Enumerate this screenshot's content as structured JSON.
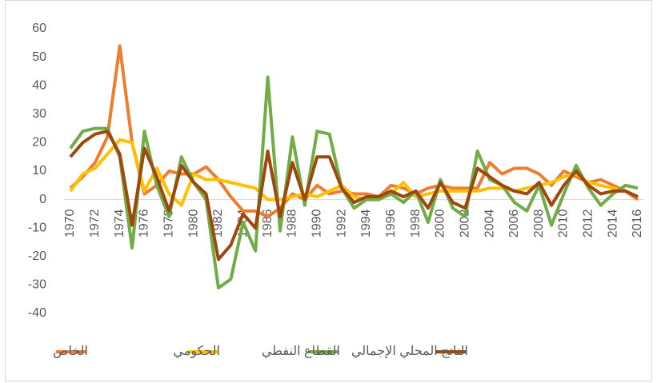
{
  "chart_data": {
    "type": "line",
    "x": [
      1970,
      1971,
      1972,
      1973,
      1974,
      1975,
      1976,
      1977,
      1978,
      1979,
      1980,
      1981,
      1982,
      1983,
      1984,
      1985,
      1986,
      1987,
      1988,
      1989,
      1990,
      1991,
      1992,
      1993,
      1994,
      1995,
      1996,
      1997,
      1998,
      1999,
      2000,
      2001,
      2002,
      2003,
      2004,
      2005,
      2006,
      2007,
      2008,
      2009,
      2010,
      2011,
      2012,
      2013,
      2014,
      2015,
      2016
    ],
    "xlim": [
      1970,
      2016
    ],
    "xticks": [
      1970,
      1972,
      1974,
      1976,
      1978,
      1980,
      1982,
      1984,
      1986,
      1988,
      1990,
      1992,
      1994,
      1996,
      1998,
      2000,
      2002,
      2004,
      2006,
      2008,
      2010,
      2012,
      2014,
      2016
    ],
    "ylim": [
      -40,
      60
    ],
    "yticks": [
      -40,
      -30,
      -20,
      -10,
      0,
      10,
      20,
      30,
      40,
      50,
      60
    ],
    "grid": false,
    "legend": "bottom",
    "series": [
      {
        "name": "الخاص",
        "color": "#ED7D31",
        "values": [
          4,
          8,
          13,
          22,
          54,
          20,
          2,
          5,
          10,
          9,
          9,
          11.5,
          7,
          1,
          -4,
          -4,
          -6,
          -3,
          2,
          0,
          5,
          2,
          3,
          2,
          2,
          1,
          5,
          4,
          2,
          4,
          5,
          4,
          4,
          4,
          13,
          9,
          11,
          11,
          9,
          5,
          10,
          8,
          6,
          7,
          5,
          3,
          0
        ]
      },
      {
        "name": "الحكومي",
        "color": "#FFC000",
        "values": [
          3,
          9,
          11,
          16,
          21,
          20,
          3,
          11,
          2,
          -2,
          9,
          7,
          7,
          6,
          5,
          4,
          0,
          0,
          1,
          2,
          1,
          3,
          5,
          1,
          0,
          0,
          2,
          6,
          1,
          2,
          3,
          3,
          3,
          3,
          4,
          4,
          3,
          4,
          5,
          6,
          8,
          9,
          6,
          5,
          4,
          3,
          1
        ]
      },
      {
        "name": "القطاع النفطي",
        "color": "#70AD47",
        "values": [
          18,
          24,
          25,
          25,
          15,
          -17,
          24,
          5,
          -6,
          15,
          6,
          0,
          -31,
          -28,
          -8,
          -18,
          43,
          -11,
          22,
          -2,
          24,
          23,
          4,
          -3,
          0,
          0,
          2,
          -1,
          3,
          -8,
          7,
          -3,
          -6,
          17,
          7,
          5,
          -1,
          -4,
          5,
          -9,
          2,
          12,
          4,
          -2,
          2,
          5,
          4
        ]
      },
      {
        "name": "الناتج المحلي الإجمالي",
        "color": "#9E480E",
        "values": [
          15,
          20,
          23,
          24,
          16,
          -9,
          18,
          8,
          -4,
          12,
          6,
          2,
          -21,
          -16,
          -5,
          -10,
          17,
          -6,
          13,
          0,
          15,
          15,
          4,
          -1,
          1,
          1,
          3,
          1,
          3,
          -3,
          6,
          -1,
          -3,
          11,
          8,
          5,
          3,
          2,
          6,
          -2,
          5,
          10,
          5,
          2,
          3,
          3,
          1
        ]
      }
    ]
  }
}
